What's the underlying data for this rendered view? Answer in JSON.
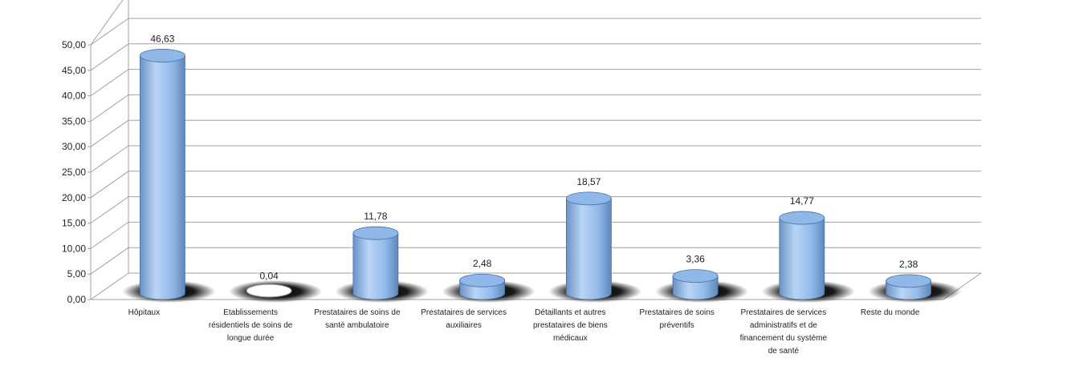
{
  "chart_data": {
    "type": "bar",
    "style": "3d-cylinder",
    "categories": [
      "Hôpitaux",
      "Etablissements résidentiels de soins de longue durée",
      "Prestataires de soins de santé ambulatoire",
      "Prestataires de services auxiliaires",
      "Détaillants et autres prestataires de biens médicaux",
      "Prestataires de soins préventifs",
      "Prestataires de services administratifs et de financement du système de santé",
      "Reste du monde"
    ],
    "category_lines": [
      [
        "Hôpitaux"
      ],
      [
        "Etablissements",
        "résidentiels de soins de",
        "longue durée"
      ],
      [
        "Prestataires de soins de",
        "santé ambulatoire"
      ],
      [
        "Prestataires de services",
        "auxiliaires"
      ],
      [
        "Détaillants et autres",
        "prestataires de biens",
        "médicaux"
      ],
      [
        "Prestataires de soins",
        "préventifs"
      ],
      [
        "Prestataires de services",
        "administratifs et de",
        "financement du système",
        "de santé"
      ],
      [
        "Reste du monde"
      ]
    ],
    "values": [
      46.63,
      0.04,
      11.78,
      2.48,
      18.57,
      3.36,
      14.77,
      2.38
    ],
    "data_labels": [
      "46,63",
      "0,04",
      "11,78",
      "2,48",
      "18,57",
      "3,36",
      "14,77",
      "2,38"
    ],
    "y_ticks": [
      "0,00",
      "5,00",
      "10,00",
      "15,00",
      "20,00",
      "25,00",
      "30,00",
      "35,00",
      "40,00",
      "45,00",
      "50,00"
    ],
    "ylim": [
      0,
      50
    ],
    "grid": true,
    "legend": "none",
    "colors": {
      "bar": "#8fb8e8",
      "bar_dark": "#5a82b4",
      "bar_light": "#c4dcf8",
      "grid": "#a0a0a0",
      "shadow": "#000000"
    }
  }
}
